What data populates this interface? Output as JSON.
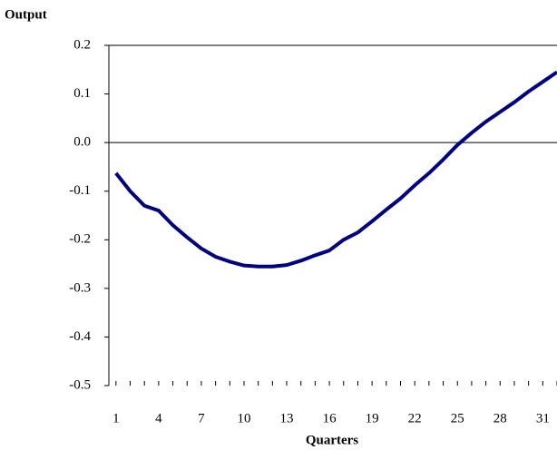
{
  "chart_data": {
    "type": "line",
    "title": "Output",
    "x_label": "Quarters",
    "x": [
      1,
      2,
      3,
      4,
      5,
      6,
      7,
      8,
      9,
      10,
      11,
      12,
      13,
      14,
      15,
      16,
      17,
      18,
      19,
      20,
      21,
      22,
      23,
      24,
      25,
      26,
      27,
      28,
      29,
      30,
      31,
      32
    ],
    "series": [
      {
        "color": "#000080",
        "values": [
          -0.063,
          -0.1,
          -0.13,
          -0.14,
          -0.17,
          -0.195,
          -0.218,
          -0.235,
          -0.245,
          -0.253,
          -0.255,
          -0.255,
          -0.252,
          -0.243,
          -0.232,
          -0.222,
          -0.2,
          -0.185,
          -0.162,
          -0.138,
          -0.115,
          -0.088,
          -0.063,
          -0.035,
          -0.005,
          0.02,
          0.043,
          0.063,
          0.083,
          0.105,
          0.125,
          0.145
        ]
      }
    ],
    "xlim": [
      0.5,
      32
    ],
    "xticks": [
      1,
      4,
      7,
      10,
      13,
      16,
      19,
      22,
      25,
      28,
      31
    ],
    "ylim": [
      -0.5,
      0.2
    ],
    "yticks": [
      0.2,
      0.1,
      {
        "value": 0,
        "label": "0.0"
      },
      -0.1,
      -0.2,
      -0.3,
      -0.4,
      -0.5
    ]
  }
}
